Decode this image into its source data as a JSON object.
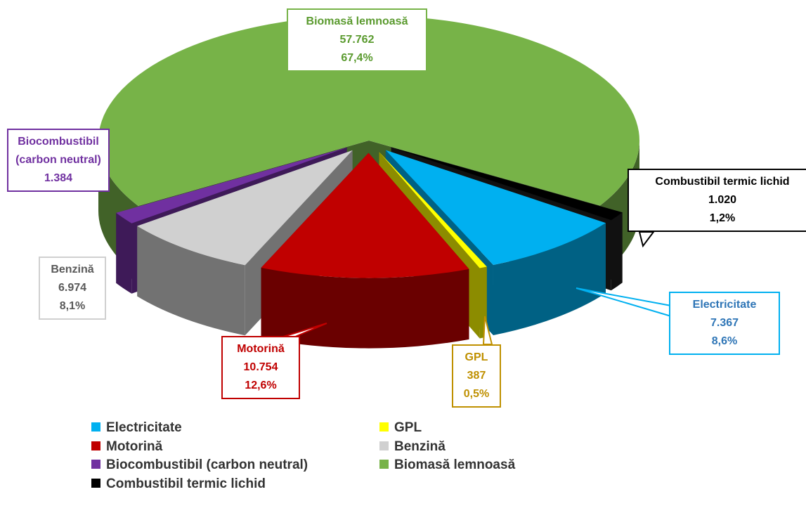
{
  "chart_data": {
    "type": "pie3d",
    "categories": [
      "Electricitate",
      "GPL",
      "Motorină",
      "Benzină",
      "Biocombustibil (carbon neutral)",
      "Biomasă lemnoasă",
      "Combustibil termic lichid"
    ],
    "values": [
      7367,
      387,
      10754,
      6974,
      1384,
      57762,
      1020
    ],
    "value_labels": [
      "7.367",
      "387",
      "10.754",
      "6.974",
      "1.384",
      "57.762",
      "1.020"
    ],
    "percents": [
      8.6,
      0.5,
      12.6,
      8.1,
      null,
      67.4,
      1.2
    ],
    "percent_labels": [
      "8,6%",
      "0,5%",
      "12,6%",
      "8,1%",
      null,
      "67,4%",
      "1,2%"
    ],
    "colors": [
      "#00b0f0",
      "#ffff00",
      "#c00000",
      "#d0d0d0",
      "#7030a0",
      "#77b348",
      "#000000"
    ]
  }
}
